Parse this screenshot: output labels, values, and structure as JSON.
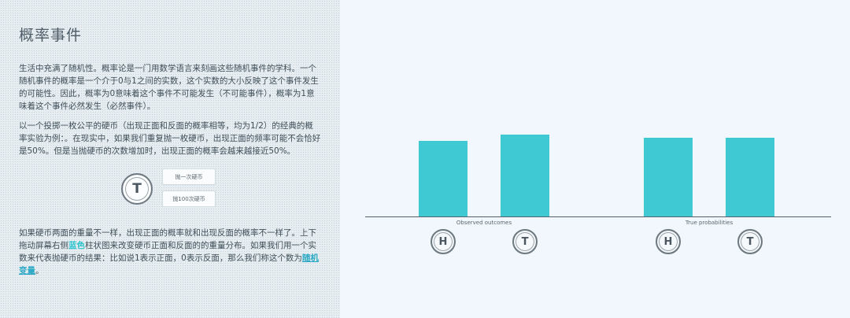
{
  "article": {
    "title": "概率事件",
    "para1": "生活中充满了随机性。概率论是一门用数学语言来刻画这些随机事件的学科。一个随机事件的概率是一个介于0与1之间的实数，这个实数的大小反映了这个事件发生的可能性。因此，概率为0意味着这个事件不可能发生（不可能事件），概率为1意味着这个事件必然发生（必然事件）。",
    "para2": "以一个投掷一枚公平的硬币（出现正面和反面的概率相等，均为1/2）的经典的概率实验为例：。在现实中，如果我们重复抛一枚硬币，出现正面的频率可能不会恰好是50%。但是当抛硬币的次数增加时，出现正面的概率会越来越接近50%。",
    "para3_part1": "如果硬币两面的重量不一样，出现正面的概率就和出现反面的概率不一样了。上下拖动屏幕右侧",
    "para3_highlight": "蓝色",
    "para3_part2": "柱状图来改变硬币正面和反面的的重量分布。如果我们用一个实数来代表抛硬币的结果：比如说1表示正面，0表示反面，那么我们称这个数为",
    "para3_link": "随机变量",
    "para3_end": "。"
  },
  "simulator": {
    "coin_face": "T",
    "flip_once_label": "抛一次硬币",
    "flip_100_label": "抛100次硬币"
  },
  "chart_data": {
    "type": "bar",
    "groups": [
      {
        "name": "Observed outcomes",
        "categories": [
          "H",
          "T"
        ],
        "values": [
          0.48,
          0.52
        ]
      },
      {
        "name": "True probabilities",
        "categories": [
          "H",
          "T"
        ],
        "values": [
          0.5,
          0.5
        ]
      }
    ],
    "bar_color": "#3ec9d3",
    "grid": false
  }
}
